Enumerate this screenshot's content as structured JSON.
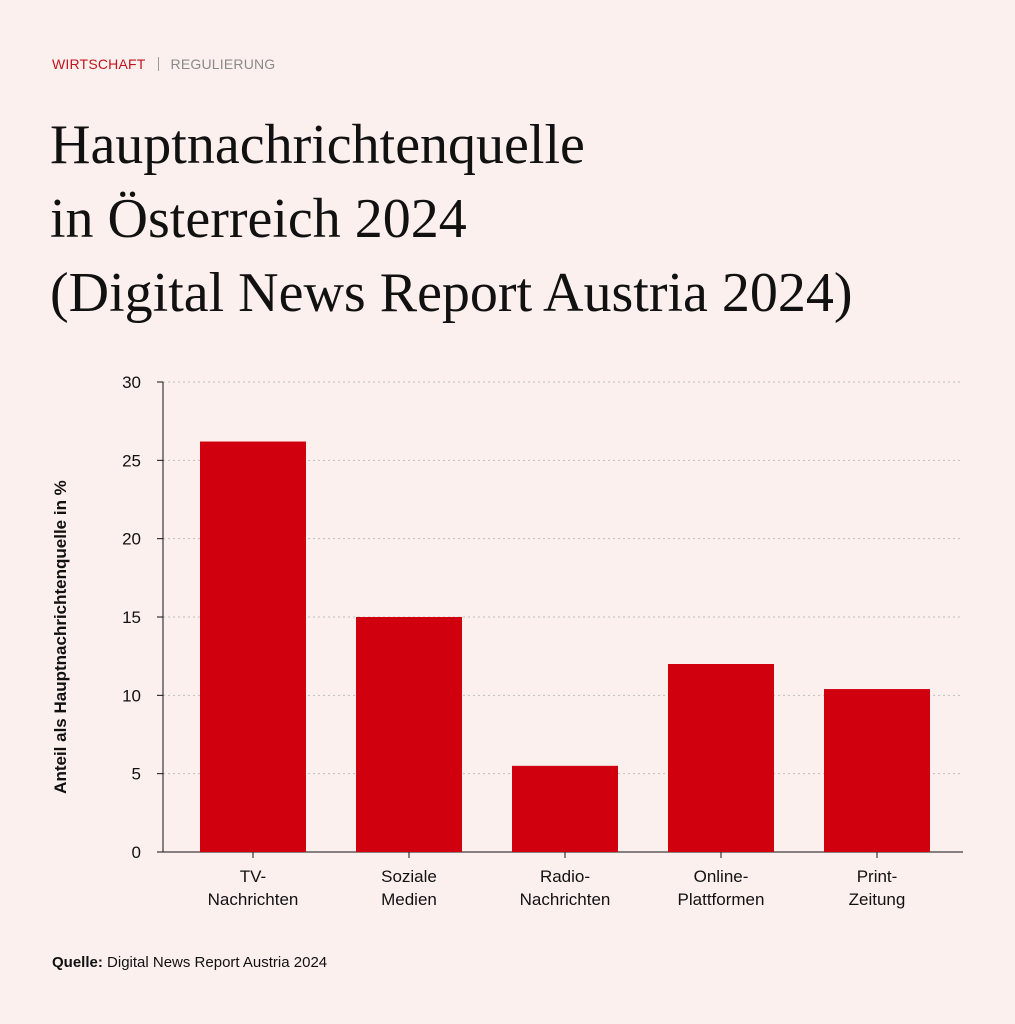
{
  "header": {
    "category": "WIRTSCHAFT",
    "subcategory": "REGULIERUNG",
    "title_lines": [
      "Hauptnachrichtenquelle",
      "in Österreich 2024",
      "(Digital News Report Austria 2024)"
    ]
  },
  "colors": {
    "bar": "#d0000f",
    "accent": "#c0141e",
    "background": "#fcf0ee"
  },
  "chart_data": {
    "type": "bar",
    "title": "Hauptnachrichtenquelle in Österreich 2024 (Digital News Report Austria 2024)",
    "categories": [
      [
        "TV-",
        "Nachrichten"
      ],
      [
        "Soziale",
        "Medien"
      ],
      [
        "Radio-",
        "Nachrichten"
      ],
      [
        "Online-",
        "Plattformen"
      ],
      [
        "Print-",
        "Zeitung"
      ]
    ],
    "values": [
      26.2,
      15.0,
      5.5,
      12.0,
      10.4
    ],
    "xlabel": "",
    "ylabel": "Anteil als Hauptnachrichtenquelle in %",
    "ylim": [
      0,
      30
    ],
    "yticks": [
      0,
      5,
      10,
      15,
      20,
      25,
      30
    ],
    "grid": true
  },
  "footer": {
    "source_label": "Quelle:",
    "source_text": "Digital News Report Austria 2024"
  }
}
